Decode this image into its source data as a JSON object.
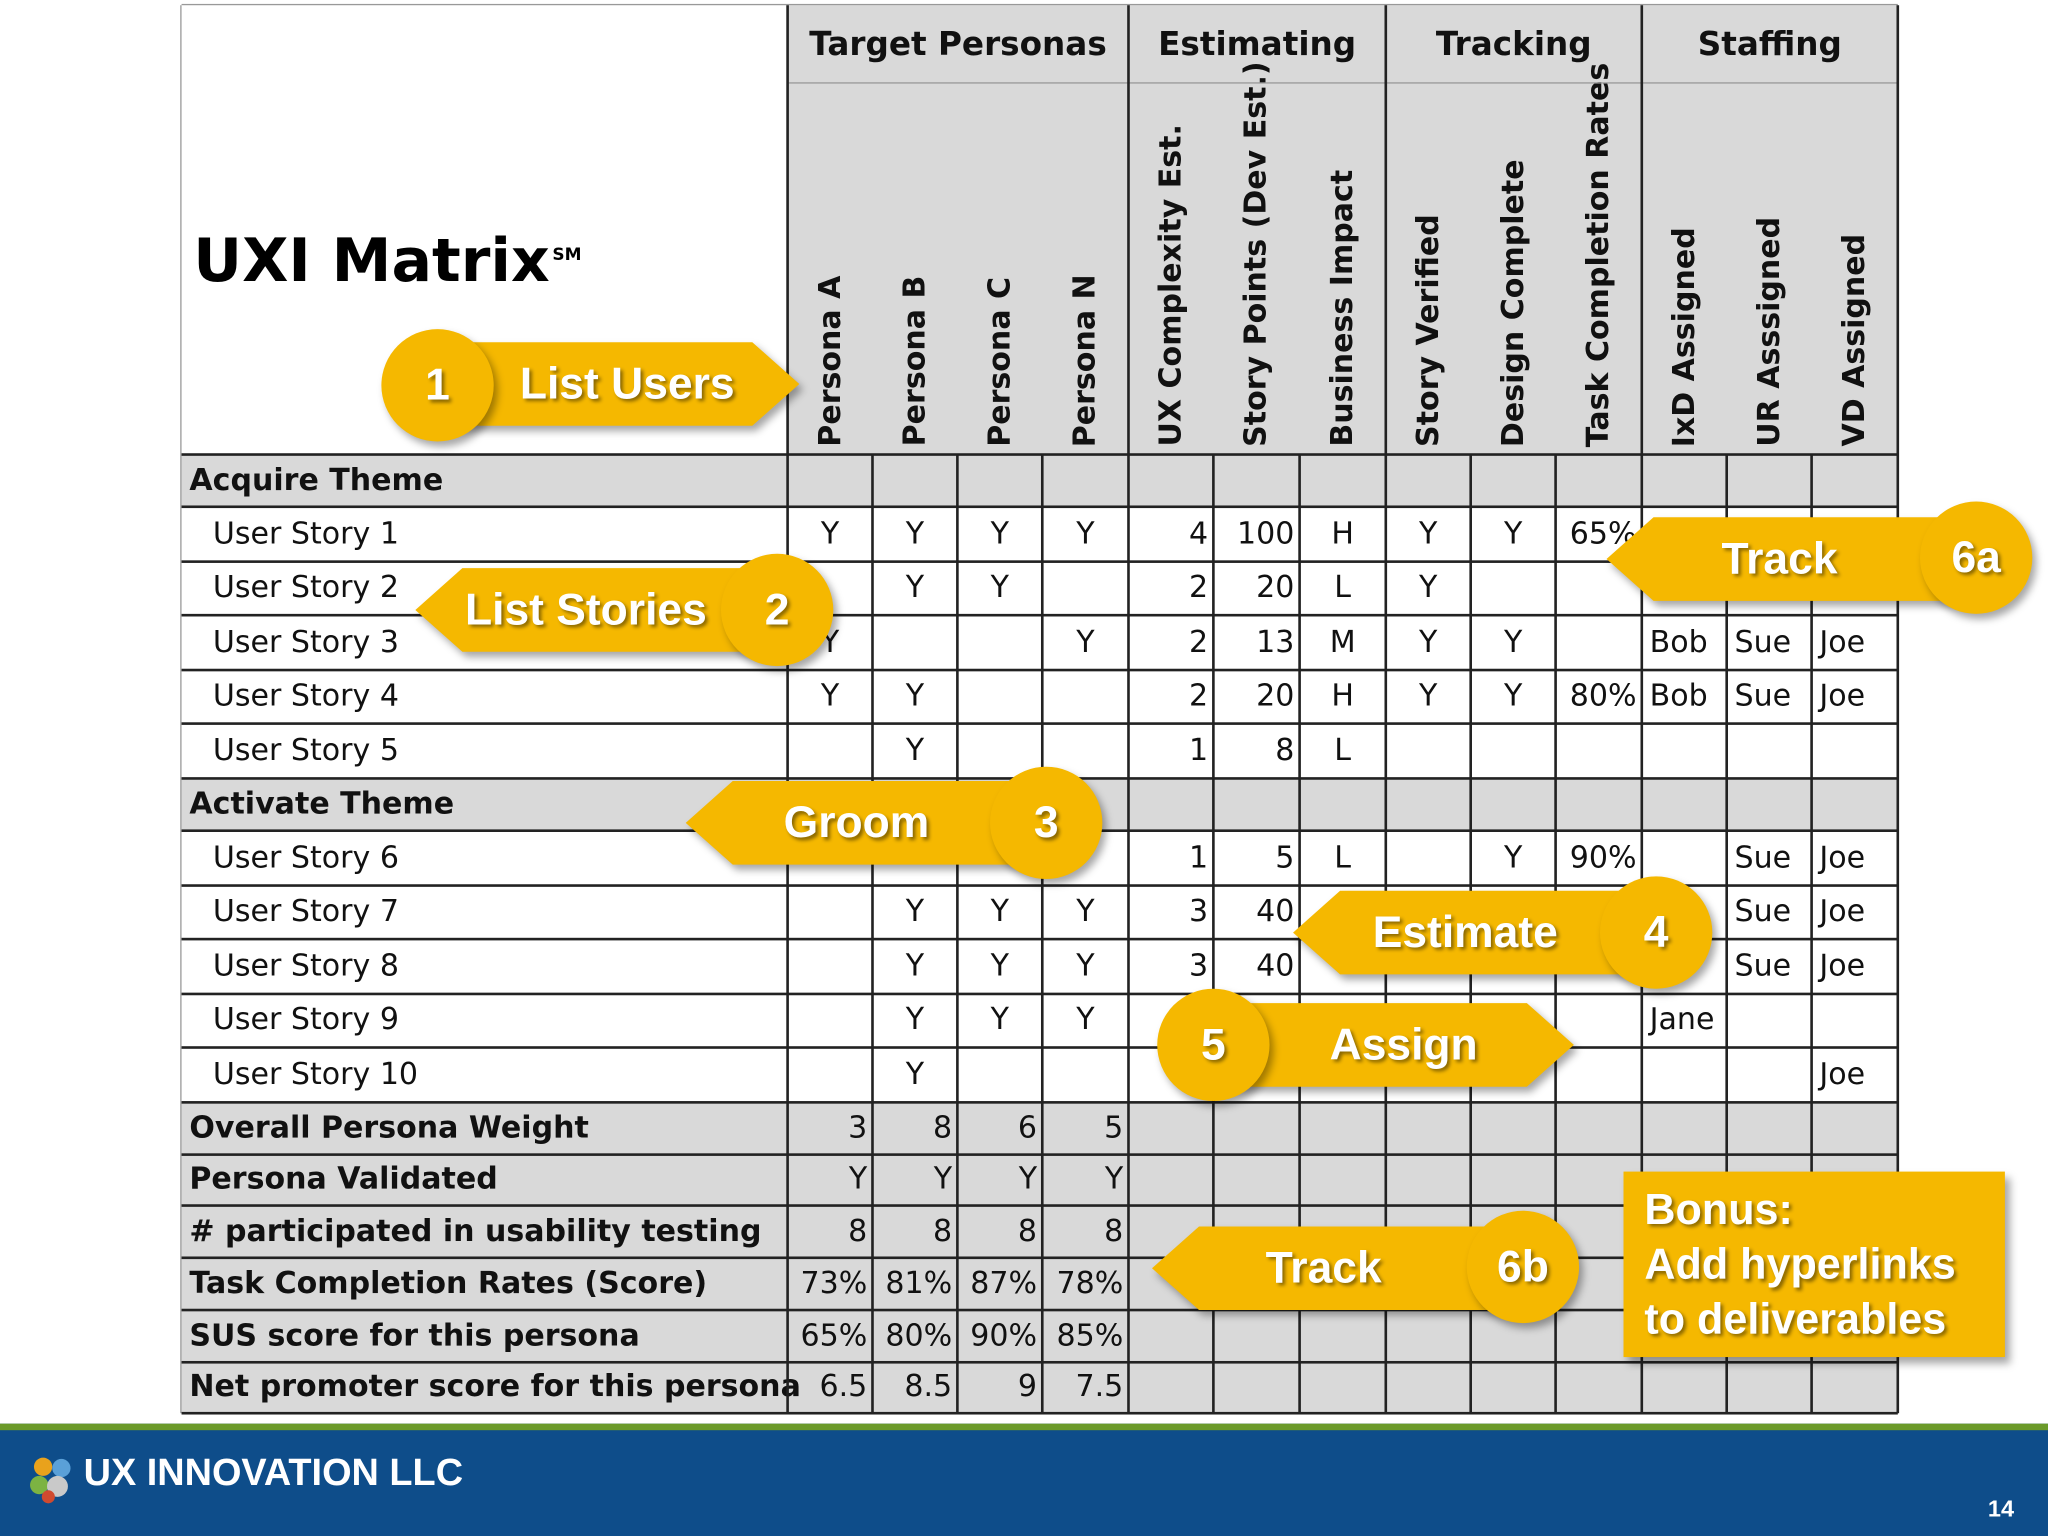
{
  "title": "UXI Matrix",
  "title_mark": "SM",
  "groups": [
    {
      "label": "Target Personas"
    },
    {
      "label": "Estimating"
    },
    {
      "label": "Tracking"
    },
    {
      "label": "Staffing"
    }
  ],
  "columns": [
    "Persona A",
    "Persona B",
    "Persona C",
    "Persona N",
    "UX Complexity Est.",
    "Story Points (Dev Est.)",
    "Business Impact",
    "Story Verified",
    "Design Complete",
    "Task Completion Rates",
    "IxD Assigned",
    "UR Asssigned",
    "VD Assigned"
  ],
  "rows": [
    {
      "label": "Acquire Theme",
      "kind": "theme",
      "cells": [
        "",
        "",
        "",
        "",
        "",
        "",
        "",
        "",
        "",
        "",
        "",
        "",
        ""
      ]
    },
    {
      "label": "User Story 1",
      "kind": "story",
      "cells": [
        "Y",
        "Y",
        "Y",
        "Y",
        "4",
        "100",
        "H",
        "Y",
        "Y",
        "65%",
        "",
        "",
        ""
      ]
    },
    {
      "label": "User Story 2",
      "kind": "story",
      "cells": [
        "",
        "Y",
        "Y",
        "",
        "2",
        "20",
        "L",
        "Y",
        "",
        "",
        "",
        "",
        ""
      ]
    },
    {
      "label": "User Story 3",
      "kind": "story",
      "cells": [
        "Y",
        "",
        "",
        "Y",
        "2",
        "13",
        "M",
        "Y",
        "Y",
        "",
        "Bob",
        "Sue",
        "Joe"
      ]
    },
    {
      "label": "User Story 4",
      "kind": "story",
      "cells": [
        "Y",
        "Y",
        "",
        "",
        "2",
        "20",
        "H",
        "Y",
        "Y",
        "80%",
        "Bob",
        "Sue",
        "Joe"
      ]
    },
    {
      "label": "User Story 5",
      "kind": "story",
      "cells": [
        "",
        "Y",
        "",
        "",
        "1",
        "8",
        "L",
        "",
        "",
        "",
        "",
        "",
        ""
      ]
    },
    {
      "label": "Activate Theme",
      "kind": "theme",
      "cells": [
        "",
        "",
        "",
        "",
        "",
        "",
        "",
        "",
        "",
        "",
        "",
        "",
        ""
      ]
    },
    {
      "label": "User Story 6",
      "kind": "story",
      "cells": [
        "",
        "",
        "",
        "",
        "1",
        "5",
        "L",
        "",
        "Y",
        "90%",
        "",
        "Sue",
        "Joe"
      ]
    },
    {
      "label": "User Story 7",
      "kind": "story",
      "cells": [
        "",
        "Y",
        "Y",
        "Y",
        "3",
        "40",
        "",
        "",
        "",
        "",
        "",
        "Sue",
        "Joe"
      ]
    },
    {
      "label": "User Story 8",
      "kind": "story",
      "cells": [
        "",
        "Y",
        "Y",
        "Y",
        "3",
        "40",
        "",
        "",
        "",
        "",
        "",
        "Sue",
        "Joe"
      ]
    },
    {
      "label": "User Story 9",
      "kind": "story",
      "cells": [
        "",
        "Y",
        "Y",
        "Y",
        "",
        "",
        "",
        "",
        "",
        "",
        "Jane",
        "",
        ""
      ]
    },
    {
      "label": "User Story 10",
      "kind": "story",
      "cells": [
        "",
        "Y",
        "",
        "",
        "",
        "",
        "",
        "",
        "",
        "",
        "",
        "",
        "Joe"
      ]
    },
    {
      "label": "Overall Persona Weight",
      "kind": "sum",
      "cells": [
        "3",
        "8",
        "6",
        "5",
        "",
        "",
        "",
        "",
        "",
        "",
        "",
        "",
        ""
      ]
    },
    {
      "label": "Persona Validated",
      "kind": "sum",
      "cells": [
        "Y",
        "Y",
        "Y",
        "Y",
        "",
        "",
        "",
        "",
        "",
        "",
        "",
        "",
        ""
      ]
    },
    {
      "label": "# participated in usability testing",
      "kind": "sum",
      "cells": [
        "8",
        "8",
        "8",
        "8",
        "",
        "",
        "",
        "",
        "",
        "",
        "",
        "",
        ""
      ]
    },
    {
      "label": "Task Completion Rates (Score)",
      "kind": "sum",
      "cells": [
        "73%",
        "81%",
        "87%",
        "78%",
        "",
        "",
        "",
        "",
        "",
        "",
        "",
        "",
        ""
      ]
    },
    {
      "label": "SUS score for this persona",
      "kind": "sum",
      "cells": [
        "65%",
        "80%",
        "90%",
        "85%",
        "",
        "",
        "",
        "",
        "",
        "",
        "",
        "",
        ""
      ]
    },
    {
      "label": "Net promoter score for this persona",
      "kind": "sum",
      "cells": [
        "6.5",
        "8.5",
        "9",
        "7.5",
        "",
        "",
        "",
        "",
        "",
        "",
        "",
        "",
        ""
      ]
    }
  ],
  "callouts": [
    {
      "num": "1",
      "label": "List Users"
    },
    {
      "num": "2",
      "label": "List Stories"
    },
    {
      "num": "3",
      "label": "Groom"
    },
    {
      "num": "4",
      "label": "Estimate"
    },
    {
      "num": "5",
      "label": "Assign"
    },
    {
      "num": "6a",
      "label": "Track"
    },
    {
      "num": "6b",
      "label": "Track"
    }
  ],
  "bonus": {
    "line1": "Bonus:",
    "line2": "Add hyperlinks",
    "line3": "to deliverables"
  },
  "footer": {
    "company": "UX INNOVATION LLC",
    "slide_number": "14"
  },
  "colors": {
    "accent": "#f5b800",
    "footer": "#0e4d8a",
    "footer_stripe": "#6b9a2a",
    "header_bg": "#d9d9d9"
  }
}
